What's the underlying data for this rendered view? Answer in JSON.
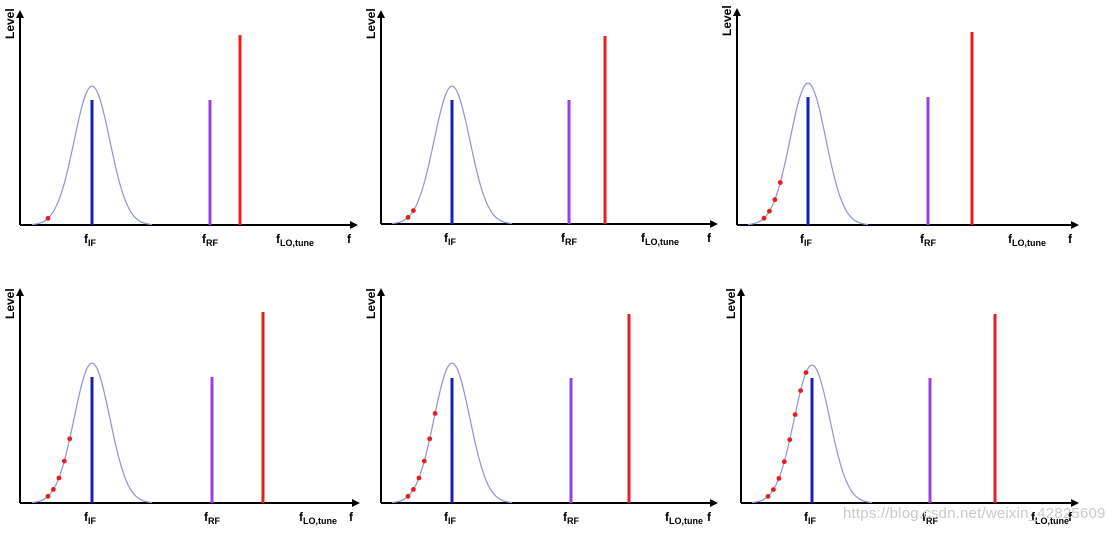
{
  "labels": {
    "y_axis": "Level",
    "x_axis": "f",
    "f_if_main": "f",
    "f_if_sub": "IF",
    "f_rf_main": "f",
    "f_rf_sub": "RF",
    "f_lo_main": "f",
    "f_lo_sub": "LO,tune"
  },
  "colors": {
    "gaussian": "#8f92d6",
    "if_line": "#1a1fb8",
    "rf_line": "#9a3fe0",
    "lo_line": "#e81d1d",
    "sweep_dots": "#e81d1d",
    "axis": "#000000"
  },
  "watermark": "https://blog.csdn.net/weixin_42825609",
  "panels": [
    {
      "sweep_points": 1
    },
    {
      "sweep_points": 2
    },
    {
      "sweep_points": 4
    },
    {
      "sweep_points": 5
    },
    {
      "sweep_points": 6
    },
    {
      "sweep_points": 8
    }
  ]
}
